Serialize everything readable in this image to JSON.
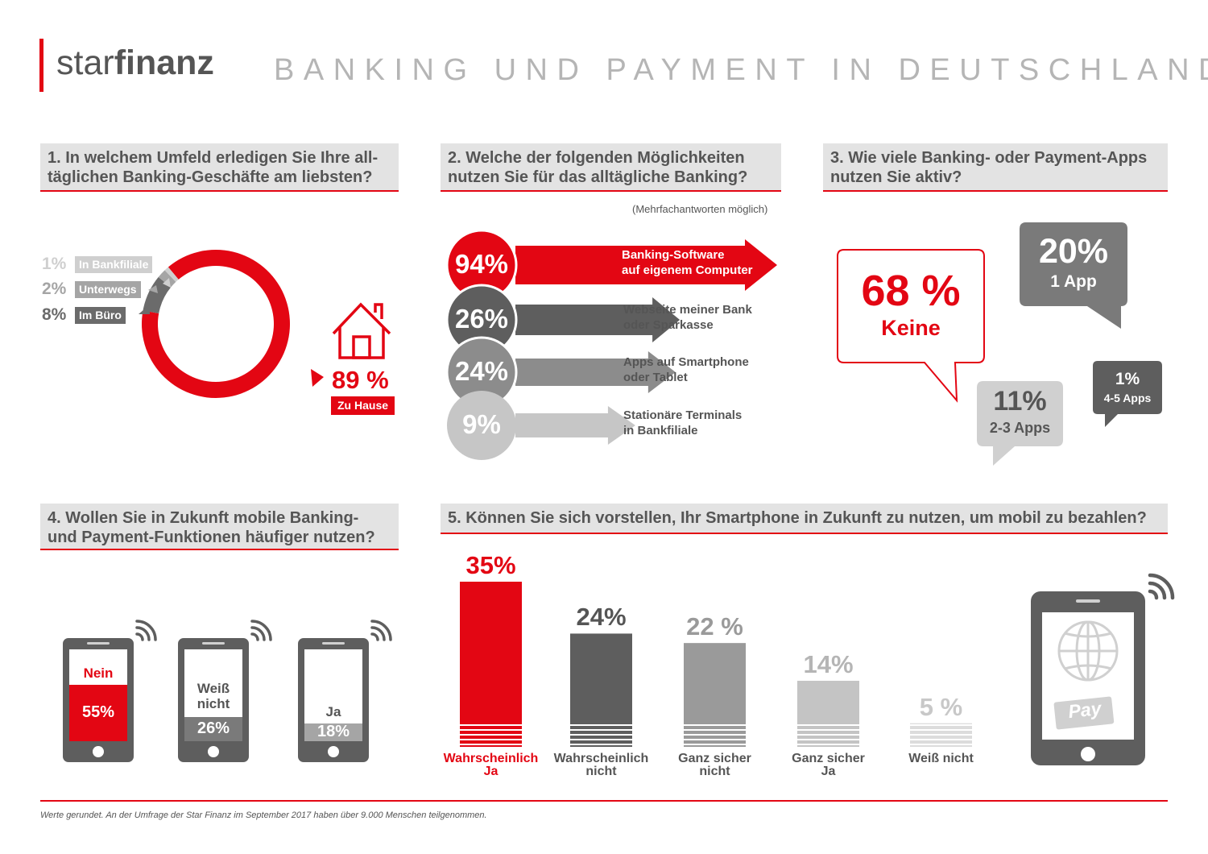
{
  "brand": {
    "name_light": "star",
    "name_bold": "finanz"
  },
  "title": "BANKING UND PAYMENT IN DEUTSCHLAND",
  "q1": {
    "question": "1. In welchem Umfeld erledigen Sie Ihre all- täglichen Banking-Geschäfte am liebsten?",
    "line1": "1. In welchem Umfeld erledigen Sie Ihre all-",
    "line2": "täglichen Banking-Geschäfte am liebsten?",
    "items": [
      {
        "pct": "1%",
        "label": "In Bankfiliale",
        "value": 1,
        "color": "#cfcfcf"
      },
      {
        "pct": "2%",
        "label": "Unterwegs",
        "value": 2,
        "color": "#a5a5a5"
      },
      {
        "pct": "8%",
        "label": "Im Büro",
        "value": 8,
        "color": "#6b6b6b"
      },
      {
        "pct": "89 %",
        "label": "Zu Hause",
        "value": 89,
        "color": "#e30613"
      }
    ]
  },
  "q2": {
    "line1": "2. Welche der folgenden Möglichkeiten",
    "line2": "nutzen Sie für das alltägliche Banking?",
    "note": "(Mehrfachantworten möglich)",
    "items": [
      {
        "pct": "94%",
        "line1": "Banking-Software",
        "line2": "auf eigenem Computer",
        "value": 94,
        "color": "#e30613"
      },
      {
        "pct": "26%",
        "line1": "Webseite meiner Bank",
        "line2": "oder Sparkasse",
        "value": 26,
        "color": "#5e5e5e"
      },
      {
        "pct": "24%",
        "line1": "Apps auf Smartphone",
        "line2": "oder Tablet",
        "value": 24,
        "color": "#8c8c8c"
      },
      {
        "pct": "9%",
        "line1": "Stationäre Terminals",
        "line2": "in Bankfiliale",
        "value": 9,
        "color": "#c6c6c6"
      }
    ]
  },
  "q3": {
    "line1": "3. Wie viele Banking- oder Payment-Apps",
    "line2": "nutzen Sie aktiv?",
    "items": [
      {
        "pct": "68 %",
        "label": "Keine",
        "value": 68
      },
      {
        "pct": "20%",
        "label": "1 App",
        "value": 20
      },
      {
        "pct": "11%",
        "label": "2-3 Apps",
        "value": 11
      },
      {
        "pct": "1%",
        "label": "4-5 Apps",
        "value": 1
      }
    ]
  },
  "q4": {
    "line1": "4. Wollen Sie in Zukunft mobile Banking-",
    "line2": "und Payment-Funktionen häufiger nutzen?",
    "items": [
      {
        "label": "Nein",
        "pct": "55%",
        "value": 55,
        "color": "#e30613"
      },
      {
        "label": "Weiß nicht",
        "line1": "Weiß",
        "line2": "nicht",
        "pct": "26%",
        "value": 26,
        "color": "#7a7a7a"
      },
      {
        "label": "Ja",
        "pct": "18%",
        "value": 18,
        "color": "#a5a5a5"
      }
    ]
  },
  "q5": {
    "question": "5. Können Sie sich vorstellen, Ihr Smartphone in Zukunft zu nutzen, um mobil zu bezahlen?",
    "pay_label": "Pay"
  },
  "chart_data": {
    "type": "bar",
    "categories": [
      "Wahrscheinlich Ja",
      "Wahrscheinlich nicht",
      "Ganz sicher nicht",
      "Ganz sicher Ja",
      "Weiß nicht"
    ],
    "cat_lines": [
      [
        "Wahrscheinlich",
        "Ja"
      ],
      [
        "Wahrscheinlich",
        "nicht"
      ],
      [
        "Ganz sicher",
        "nicht"
      ],
      [
        "Ganz sicher",
        "Ja"
      ],
      [
        "Weiß nicht",
        ""
      ]
    ],
    "values": [
      35,
      24,
      22,
      14,
      5
    ],
    "value_labels": [
      "35%",
      "24%",
      "22 %",
      "14%",
      "5 %"
    ],
    "colors": [
      "#e30613",
      "#5e5e5e",
      "#9a9a9a",
      "#c4c4c4",
      "#dcdcdc"
    ],
    "ylim": [
      0,
      35
    ]
  },
  "footnote": "Werte gerundet. An der Umfrage der Star Finanz im September 2017 haben über 9.000 Menschen teilgenommen."
}
